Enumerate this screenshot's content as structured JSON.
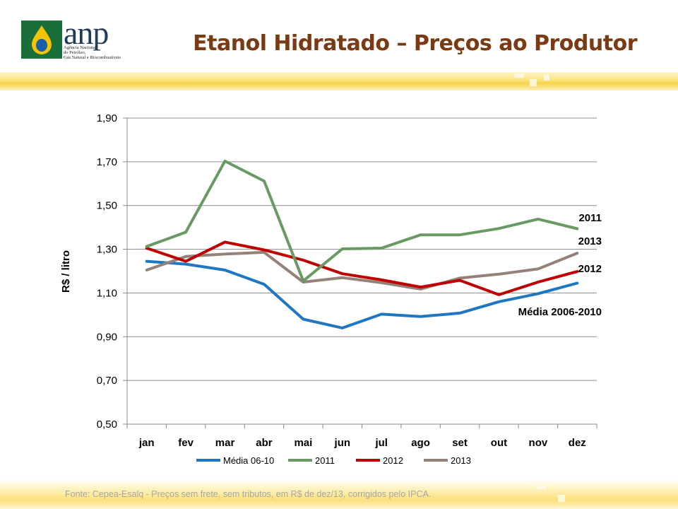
{
  "header": {
    "logo_text": "anp",
    "logo_subtitle": [
      "Agência Nacional",
      "do Petróleo,",
      "Gás Natural e Biocombustíveis"
    ],
    "title": "Etanol Hidratado – Preços ao Produtor"
  },
  "colors": {
    "title": "#7a3a14",
    "band": "#f7d24a",
    "media": "#1f77c2",
    "s2011": "#6a9a64",
    "s2012": "#c00000",
    "s2013": "#948278"
  },
  "chart_data": {
    "type": "line",
    "title": "",
    "xlabel": "",
    "ylabel": "R$ / litro",
    "ylim": [
      0.5,
      1.9
    ],
    "yticks": [
      "0,50",
      "0,70",
      "0,90",
      "1,10",
      "1,30",
      "1,50",
      "1,70",
      "1,90"
    ],
    "grid": true,
    "legend_position": "bottom",
    "categories": [
      "jan",
      "fev",
      "mar",
      "abr",
      "mai",
      "jun",
      "jul",
      "ago",
      "set",
      "out",
      "nov",
      "dez"
    ],
    "series": [
      {
        "name": "Média 06-10",
        "color": "#1f77c2",
        "end_label": "Média 2006-2010",
        "values": [
          1.245,
          1.232,
          1.205,
          1.14,
          0.98,
          0.94,
          1.003,
          0.992,
          1.008,
          1.06,
          1.097,
          1.145
        ]
      },
      {
        "name": "2011",
        "color": "#6a9a64",
        "end_label": "2011",
        "values": [
          1.313,
          1.378,
          1.703,
          1.612,
          1.155,
          1.302,
          1.305,
          1.366,
          1.366,
          1.395,
          1.438,
          1.394
        ]
      },
      {
        "name": "2012",
        "color": "#c00000",
        "end_label": "2012",
        "values": [
          1.305,
          1.245,
          1.333,
          1.297,
          1.25,
          1.188,
          1.16,
          1.127,
          1.158,
          1.092,
          1.15,
          1.198
        ]
      },
      {
        "name": "2013",
        "color": "#948278",
        "end_label": "2013",
        "values": [
          1.205,
          1.267,
          1.278,
          1.286,
          1.15,
          1.17,
          1.147,
          1.118,
          1.168,
          1.186,
          1.21,
          1.282
        ]
      }
    ]
  },
  "footer": {
    "source": "Fonte: Cepea-Esalq - Preços sem frete, sem tributos, em R$ de dez/13, corrigidos pelo IPCA."
  }
}
